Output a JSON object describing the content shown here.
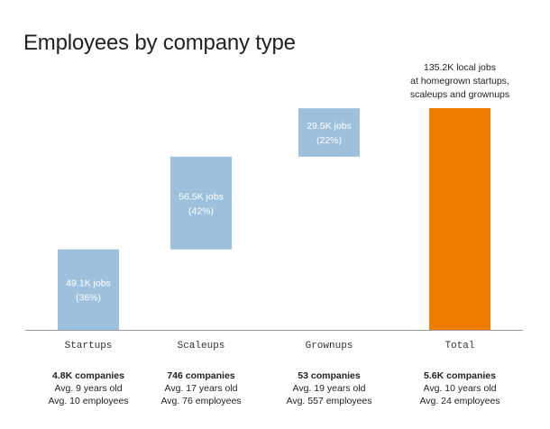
{
  "title": "Employees by company type",
  "chart_data": {
    "type": "bar",
    "subtype": "waterfall",
    "title": "Employees by company type",
    "unit": "K jobs",
    "categories": [
      "Startups",
      "Scaleups",
      "Grownups",
      "Total"
    ],
    "values": [
      49.1,
      56.5,
      29.5,
      135.2
    ],
    "bar_labels": [
      [
        "49.1K jobs",
        "(36%)"
      ],
      [
        "56.5K jobs",
        "(42%)"
      ],
      [
        "29.5K jobs",
        "(22%)"
      ],
      []
    ],
    "total_annotation": [
      "135.2K local jobs",
      "at homegrown startups,",
      "scaleups and grownups"
    ],
    "colors": {
      "segment": "#9dc1dc",
      "total": "#f07c00",
      "baseline": "#999999"
    }
  },
  "stats": [
    {
      "bold": "4.8K companies",
      "line2": "Avg. 9 years old",
      "line3": "Avg. 10 employees"
    },
    {
      "bold": "746 companies",
      "line2": "Avg. 17 years old",
      "line3": "Avg. 76 employees"
    },
    {
      "bold": "53 companies",
      "line2": "Avg. 19 years old",
      "line3": "Avg. 557 employees"
    },
    {
      "bold": "5.6K companies",
      "line2": "Avg. 10 years old",
      "line3": "Avg. 24 employees"
    }
  ]
}
